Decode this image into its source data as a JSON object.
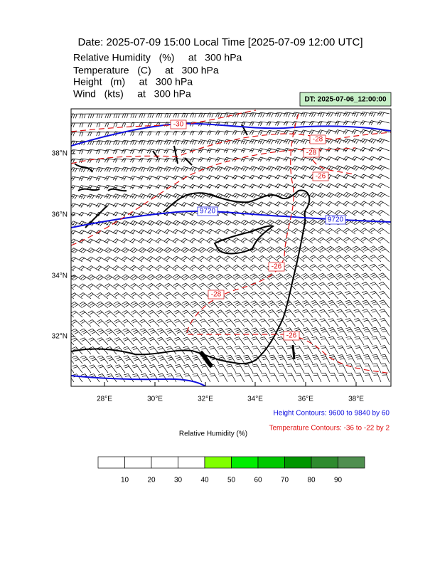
{
  "header": {
    "title": "Date: 2025-07-09  15:00 Local Time [2025-07-09  12:00 UTC]",
    "fields": [
      "Relative Humidity   (%)     at   300 hPa",
      "Temperature   (C)     at   300 hPa",
      "Height   (m)     at   300 hPa",
      "Wind   (kts)     at   300 hPa"
    ],
    "dt": "DT: 2025-07-06_12:00:00"
  },
  "map": {
    "lat_labels": [
      "38°N",
      "36°N",
      "34°N",
      "32°N"
    ],
    "lon_labels": [
      "28°E",
      "30°E",
      "32°E",
      "34°E",
      "36°E",
      "38°E"
    ],
    "contour_labels": [
      "-30",
      "-28",
      "-28",
      "-26",
      "9720",
      "9720",
      "-26",
      "-28",
      "-26"
    ]
  },
  "notes": {
    "height": "Height Contours: 9600 to 9840 by 60",
    "temperature": "Temperature Contours: -36 to -22 by 2"
  },
  "colorbar": {
    "title": "Relative Humidity  (%)",
    "labels": [
      10,
      20,
      30,
      40,
      50,
      60,
      70,
      80,
      90
    ],
    "colors": [
      "#ffffff",
      "#ffffff",
      "#ffffff",
      "#ffffff",
      "#80ff00",
      "#00ee00",
      "#00c800",
      "#009600",
      "#2e8b2e",
      "#4f8f4f"
    ]
  }
}
